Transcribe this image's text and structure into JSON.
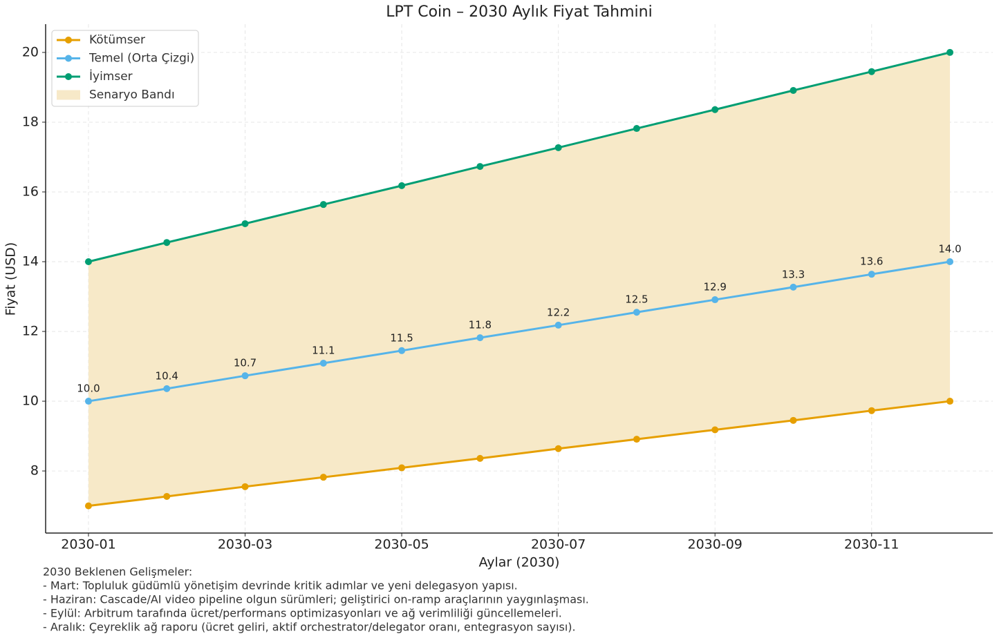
{
  "chart_data": {
    "type": "line",
    "title": "LPT Coin – 2030 Aylık Fiyat Tahmini",
    "x_label": "Aylar (2030)",
    "y_label": "Fiyat (USD)",
    "categories": [
      "2030-01",
      null,
      "2030-03",
      null,
      "2030-05",
      null,
      "2030-07",
      null,
      "2030-09",
      null,
      "2030-11",
      null
    ],
    "series": [
      {
        "name": "Kötümser",
        "color": "#e69f00",
        "values": [
          7,
          7.27,
          7.55,
          7.82,
          8.09,
          8.36,
          8.64,
          8.91,
          9.18,
          9.45,
          9.73,
          10
        ]
      },
      {
        "name": "Temel (Orta Çizgi)",
        "color": "#56b4e9",
        "values": [
          10,
          10.36,
          10.73,
          11.09,
          11.45,
          11.82,
          12.18,
          12.55,
          12.91,
          13.27,
          13.64,
          14
        ],
        "value_labels": [
          "10.0",
          "10.4",
          "10.7",
          "11.1",
          "11.5",
          "11.8",
          "12.2",
          "12.5",
          "12.9",
          "13.3",
          "13.6",
          "14.0"
        ]
      },
      {
        "name": "İyimser",
        "color": "#009e73",
        "values": [
          14,
          14.55,
          15.09,
          15.64,
          16.18,
          16.73,
          17.27,
          17.82,
          18.36,
          18.91,
          19.45,
          20
        ]
      }
    ],
    "band": {
      "name": "Senaryo Bandı",
      "color": "#f7e9c8"
    },
    "ylim": [
      6.22,
      20.81
    ],
    "yticks": [
      8,
      10,
      12,
      14,
      16,
      18,
      20
    ],
    "grid": true,
    "legend": "upper-left"
  },
  "footnote": {
    "title": "2030 Beklenen Gelişmeler:",
    "lines": [
      "- Mart: Topluluk güdümlü yönetişim devrinde kritik adımlar ve yeni delegasyon yapısı.",
      "- Haziran: Cascade/AI video pipeline olgun sürümleri; geliştirici on-ramp araçlarının yaygınlaşması.",
      "- Eylül: Arbitrum tarafında ücret/performans optimizasyonları ve ağ verimliliği güncellemeleri.",
      "- Aralık: Çeyreklik ağ raporu (ücret geliri, aktif orchestrator/delegator oranı, entegrasyon sayısı)."
    ]
  }
}
